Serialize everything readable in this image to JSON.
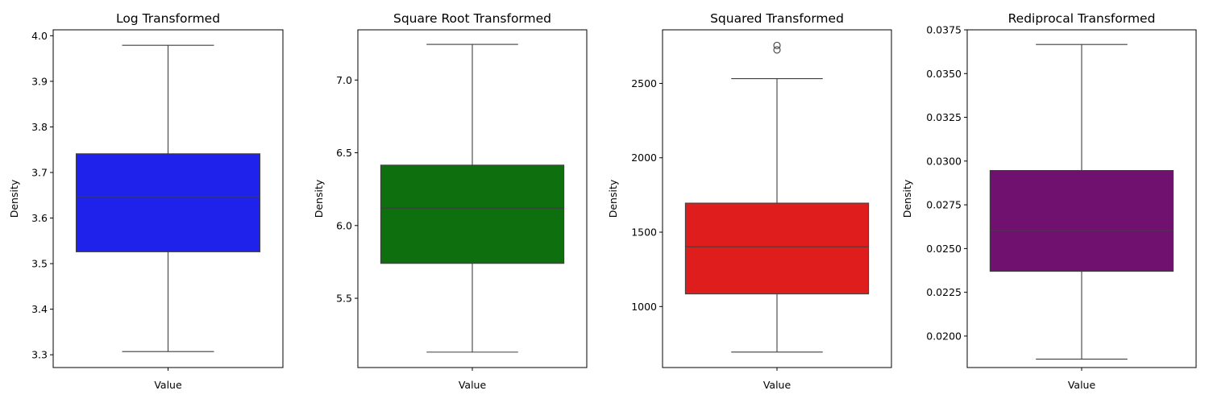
{
  "chart_data": [
    {
      "type": "box",
      "title": "Log Transformed",
      "xlabel": "Value",
      "ylabel": "Density",
      "category": "Value",
      "color": "#1f22eb",
      "ylim": [
        3.272,
        4.013
      ],
      "yticks": [
        3.3,
        3.4,
        3.5,
        3.6,
        3.7,
        3.8,
        3.9,
        4.0
      ],
      "yticklabels": [
        "3.3",
        "3.4",
        "3.5",
        "3.6",
        "3.7",
        "3.8",
        "3.9",
        "4.0"
      ],
      "box": {
        "whisker_low": 3.307,
        "q1": 3.526,
        "median": 3.647,
        "q3": 3.741,
        "whisker_high": 3.979
      },
      "outliers": []
    },
    {
      "type": "box",
      "title": "Square Root Transformed",
      "xlabel": "Value",
      "ylabel": "Density",
      "category": "Value",
      "color": "#0e6f0e",
      "ylim": [
        5.024,
        7.345
      ],
      "yticks": [
        5.5,
        6.0,
        6.5,
        7.0
      ],
      "yticklabels": [
        "5.5",
        "6.0",
        "6.5",
        "7.0"
      ],
      "box": {
        "whisker_low": 5.13,
        "q1": 5.74,
        "median": 6.12,
        "q3": 6.415,
        "whisker_high": 7.245
      },
      "outliers": []
    },
    {
      "type": "box",
      "title": "Squared Transformed",
      "xlabel": "Value",
      "ylabel": "Density",
      "category": "Value",
      "color": "#e01d1d",
      "ylim": [
        590,
        2860
      ],
      "yticks": [
        1000,
        1500,
        2000,
        2500
      ],
      "yticklabels": [
        "1000",
        "1500",
        "2000",
        "2500"
      ],
      "box": {
        "whisker_low": 694,
        "q1": 1085,
        "median": 1402,
        "q3": 1695,
        "whisker_high": 2532
      },
      "outliers": [
        2725,
        2755
      ]
    },
    {
      "type": "box",
      "title": "Rediprocal Transformed",
      "xlabel": "Value",
      "ylabel": "Density",
      "category": "Value",
      "color": "#70116f",
      "ylim": [
        0.0182,
        0.0375
      ],
      "yticks": [
        0.02,
        0.0225,
        0.025,
        0.0275,
        0.03,
        0.0325,
        0.035,
        0.0375
      ],
      "yticklabels": [
        "0.0200",
        "0.0225",
        "0.0250",
        "0.0275",
        "0.0300",
        "0.0325",
        "0.0350",
        "0.0375"
      ],
      "box": {
        "whisker_low": 0.01868,
        "q1": 0.0237,
        "median": 0.02603,
        "q3": 0.02946,
        "whisker_high": 0.03666
      },
      "outliers": []
    }
  ]
}
